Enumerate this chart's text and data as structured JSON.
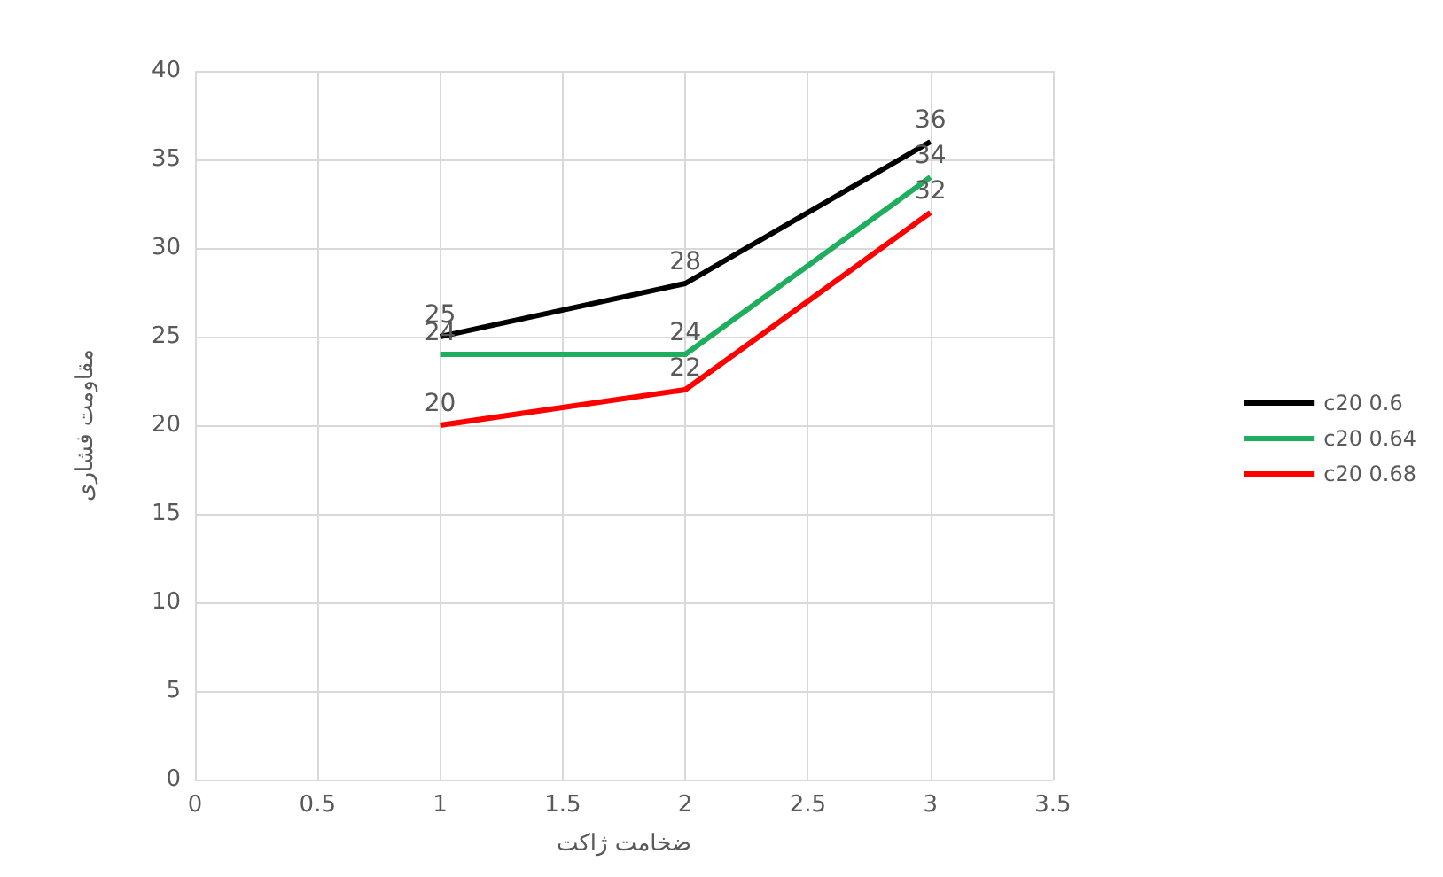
{
  "chart_data": {
    "type": "line",
    "xlabel": "ضخامت ژاکت",
    "ylabel": "مقاومت فشاری",
    "x": [
      1,
      2,
      3
    ],
    "series": [
      {
        "name": "c20 0.6",
        "color": "#000000",
        "values": [
          25,
          28,
          36
        ]
      },
      {
        "name": "c20 0.64",
        "color": "#1fad5e",
        "values": [
          24,
          24,
          34
        ]
      },
      {
        "name": "c20 0.68",
        "color": "#ff0000",
        "values": [
          20,
          22,
          32
        ]
      }
    ],
    "xlim": [
      0,
      3.5
    ],
    "xticks": [
      0,
      0.5,
      1,
      1.5,
      2,
      2.5,
      3,
      3.5
    ],
    "ylim": [
      0,
      40
    ],
    "yticks": [
      0,
      5,
      10,
      15,
      20,
      25,
      30,
      35,
      40
    ],
    "grid": true,
    "legend": "right",
    "marker": "none",
    "line_style": "solid",
    "data_labels": true
  }
}
